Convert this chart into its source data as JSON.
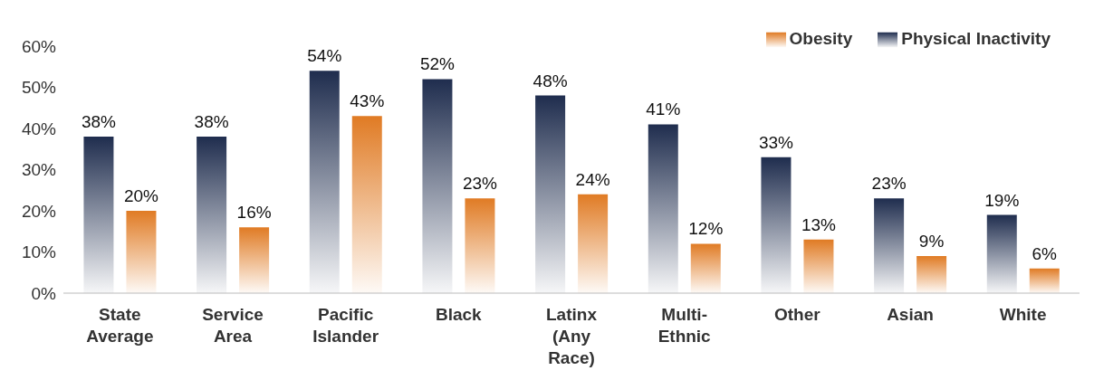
{
  "chart_data": {
    "type": "bar",
    "categories": [
      "State Average",
      "Service Area",
      "Pacific Islander",
      "Black",
      "Latinx (Any Race)",
      "Multi-Ethnic",
      "Other",
      "Asian",
      "White"
    ],
    "series": [
      {
        "name": "Physical Inactivity",
        "color": "#1f2d4e",
        "values": [
          38,
          38,
          54,
          52,
          48,
          41,
          33,
          23,
          19
        ],
        "value_labels": [
          "38%",
          "38%",
          "54%",
          "52%",
          "48%",
          "41%",
          "33%",
          "23%",
          "19%"
        ]
      },
      {
        "name": "Obesity",
        "color": "#e07b24",
        "values": [
          20,
          16,
          43,
          23,
          24,
          12,
          13,
          9,
          6
        ],
        "value_labels": [
          "20%",
          "16%",
          "43%",
          "23%",
          "24%",
          "12%",
          "13%",
          "9%",
          "6%"
        ]
      }
    ],
    "ylim": [
      0,
      60
    ],
    "yticks": [
      {
        "value": 0,
        "label": "0%"
      },
      {
        "value": 10,
        "label": "10%"
      },
      {
        "value": 20,
        "label": "20%"
      },
      {
        "value": 30,
        "label": "30%"
      },
      {
        "value": 40,
        "label": "40%"
      },
      {
        "value": 50,
        "label": "50%"
      },
      {
        "value": 60,
        "label": "60%"
      }
    ],
    "grid": false,
    "legend": "top right"
  }
}
